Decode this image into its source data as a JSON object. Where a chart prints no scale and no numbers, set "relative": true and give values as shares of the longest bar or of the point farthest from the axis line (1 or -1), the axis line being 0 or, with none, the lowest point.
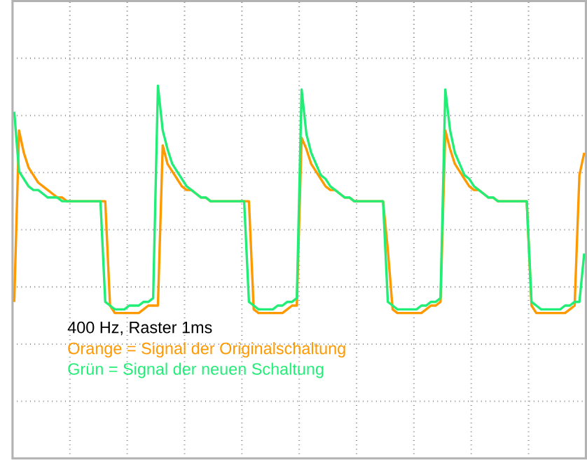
{
  "chart_data": {
    "type": "line",
    "relative": true,
    "grid": true,
    "legend": "bottom left",
    "marker": "none",
    "line_style": "solid",
    "annotations": [
      "400 Hz, Raster 1ms"
    ],
    "categories": [
      null,
      null,
      null,
      null,
      null,
      null,
      null,
      null,
      null,
      null,
      null,
      null,
      null,
      null,
      null,
      null,
      null,
      null,
      null,
      null,
      null,
      null,
      null,
      null,
      null,
      null,
      null,
      null,
      null,
      null,
      null,
      null,
      null,
      null,
      null,
      null,
      null,
      null,
      null,
      null,
      null,
      null,
      null,
      null,
      null,
      null,
      null,
      null,
      null,
      null,
      null,
      null,
      null,
      null,
      null,
      null,
      null,
      null,
      null,
      null,
      null,
      null,
      null,
      null,
      null,
      null,
      null,
      null,
      null,
      null,
      null,
      null,
      null,
      null,
      null,
      null,
      null,
      null,
      null,
      null,
      null,
      null,
      null,
      null,
      null,
      null,
      null,
      null,
      null,
      null,
      null,
      null,
      null,
      null,
      null,
      null,
      null,
      null,
      null,
      null,
      null,
      null,
      null,
      null,
      null,
      null,
      null,
      null,
      null,
      null,
      null,
      null,
      null,
      null,
      null,
      null,
      null,
      null,
      null,
      null
    ],
    "series": [
      {
        "name": "Orange = Signal der Originalschaltung",
        "color": "#ff9900",
        "values": [
          0.42,
          0.88,
          0.82,
          0.78,
          0.76,
          0.74,
          0.73,
          0.72,
          0.71,
          0.7,
          0.7,
          0.69,
          0.69,
          0.69,
          0.69,
          0.69,
          0.69,
          0.69,
          0.69,
          0.69,
          0.41,
          0.39,
          0.39,
          0.39,
          0.39,
          0.39,
          0.39,
          0.4,
          0.41,
          0.41,
          0.41,
          0.84,
          0.79,
          0.77,
          0.75,
          0.73,
          0.72,
          0.72,
          0.71,
          0.7,
          0.7,
          0.69,
          0.69,
          0.69,
          0.69,
          0.69,
          0.69,
          0.69,
          0.69,
          0.69,
          0.4,
          0.39,
          0.39,
          0.39,
          0.39,
          0.39,
          0.39,
          0.4,
          0.41,
          0.41,
          0.86,
          0.83,
          0.79,
          0.77,
          0.75,
          0.73,
          0.72,
          0.72,
          0.71,
          0.7,
          0.7,
          0.69,
          0.69,
          0.69,
          0.69,
          0.69,
          0.69,
          0.69,
          0.56,
          0.4,
          0.39,
          0.39,
          0.39,
          0.39,
          0.39,
          0.39,
          0.4,
          0.41,
          0.41,
          0.42,
          0.88,
          0.83,
          0.79,
          0.77,
          0.75,
          0.73,
          0.72,
          0.72,
          0.71,
          0.7,
          0.7,
          0.69,
          0.69,
          0.69,
          0.69,
          0.69,
          0.69,
          0.69,
          0.41,
          0.39,
          0.39,
          0.39,
          0.39,
          0.39,
          0.39,
          0.39,
          0.4,
          0.41,
          0.76,
          0.82
        ]
      },
      {
        "name": "Grün = Signal der neuen Schaltung",
        "color": "#22ee77",
        "values": [
          0.93,
          0.77,
          0.75,
          0.73,
          0.72,
          0.72,
          0.71,
          0.7,
          0.7,
          0.7,
          0.69,
          0.69,
          0.69,
          0.69,
          0.69,
          0.69,
          0.69,
          0.69,
          0.69,
          0.42,
          0.41,
          0.4,
          0.4,
          0.4,
          0.41,
          0.41,
          0.41,
          0.42,
          0.42,
          0.43,
          1.0,
          0.88,
          0.83,
          0.79,
          0.77,
          0.75,
          0.73,
          0.72,
          0.71,
          0.7,
          0.7,
          0.69,
          0.69,
          0.69,
          0.69,
          0.69,
          0.69,
          0.69,
          0.69,
          0.42,
          0.41,
          0.4,
          0.4,
          0.4,
          0.4,
          0.41,
          0.41,
          0.42,
          0.42,
          0.43,
          0.99,
          0.87,
          0.82,
          0.79,
          0.76,
          0.75,
          0.73,
          0.72,
          0.71,
          0.7,
          0.7,
          0.69,
          0.69,
          0.69,
          0.69,
          0.69,
          0.69,
          0.69,
          0.42,
          0.41,
          0.4,
          0.4,
          0.4,
          0.4,
          0.4,
          0.41,
          0.41,
          0.42,
          0.42,
          0.43,
          0.99,
          0.88,
          0.82,
          0.79,
          0.76,
          0.75,
          0.73,
          0.72,
          0.71,
          0.7,
          0.7,
          0.69,
          0.69,
          0.69,
          0.69,
          0.69,
          0.69,
          0.69,
          0.42,
          0.41,
          0.4,
          0.4,
          0.4,
          0.4,
          0.4,
          0.41,
          0.41,
          0.42,
          0.42,
          0.55
        ]
      }
    ]
  }
}
